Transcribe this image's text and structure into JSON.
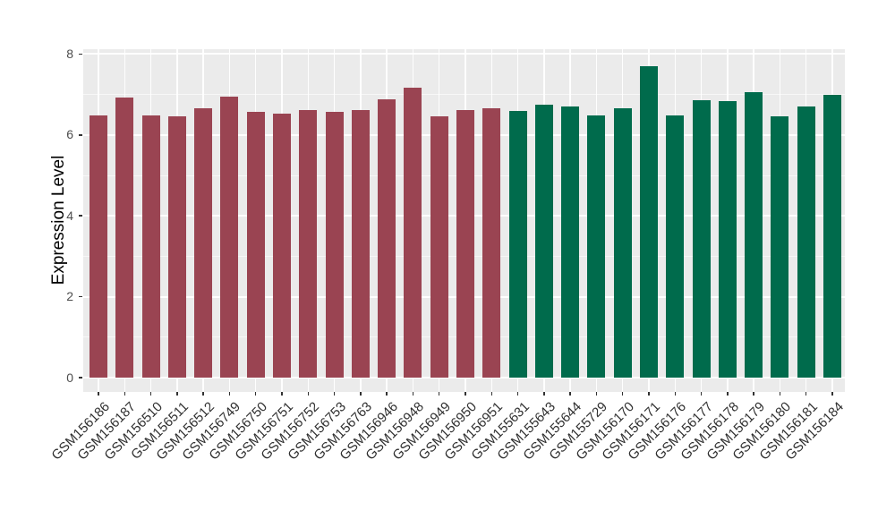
{
  "chart_data": {
    "type": "bar",
    "title": "",
    "xlabel": "",
    "ylabel": "Expression Level",
    "ylim": [
      0,
      8
    ],
    "yticks": [
      0,
      2,
      4,
      6,
      8
    ],
    "minor_yticks": [
      1,
      3,
      5,
      7
    ],
    "grid": "white major and minor horizontal lines plus vertical lines at category centers on light-gray panel",
    "legend_position": "none",
    "panel_background": "#EBEBEB",
    "gridline_color": "#FFFFFF",
    "tick_color": "#333333",
    "axis_text_color": "#303030",
    "colors": {
      "group1": "#9A4452",
      "group2": "#006B4C"
    },
    "categories": [
      "GSM156186",
      "GSM156187",
      "GSM156510",
      "GSM156511",
      "GSM156512",
      "GSM156749",
      "GSM156750",
      "GSM156751",
      "GSM156752",
      "GSM156753",
      "GSM156763",
      "GSM156946",
      "GSM156948",
      "GSM156949",
      "GSM156950",
      "GSM156951",
      "GSM155631",
      "GSM155643",
      "GSM155644",
      "GSM155729",
      "GSM156170",
      "GSM156171",
      "GSM156176",
      "GSM156177",
      "GSM156178",
      "GSM156179",
      "GSM156180",
      "GSM156181",
      "GSM156184"
    ],
    "values": [
      6.48,
      6.93,
      6.48,
      6.47,
      6.66,
      6.94,
      6.58,
      6.53,
      6.62,
      6.58,
      6.61,
      6.88,
      7.17,
      6.46,
      6.62,
      6.67,
      6.59,
      6.76,
      6.71,
      6.48,
      6.66,
      7.7,
      6.48,
      6.86,
      6.83,
      7.06,
      6.46,
      6.71,
      6.99
    ],
    "groups": [
      "group1",
      "group1",
      "group1",
      "group1",
      "group1",
      "group1",
      "group1",
      "group1",
      "group1",
      "group1",
      "group1",
      "group1",
      "group1",
      "group1",
      "group1",
      "group1",
      "group2",
      "group2",
      "group2",
      "group2",
      "group2",
      "group2",
      "group2",
      "group2",
      "group2",
      "group2",
      "group2",
      "group2",
      "group2"
    ]
  }
}
